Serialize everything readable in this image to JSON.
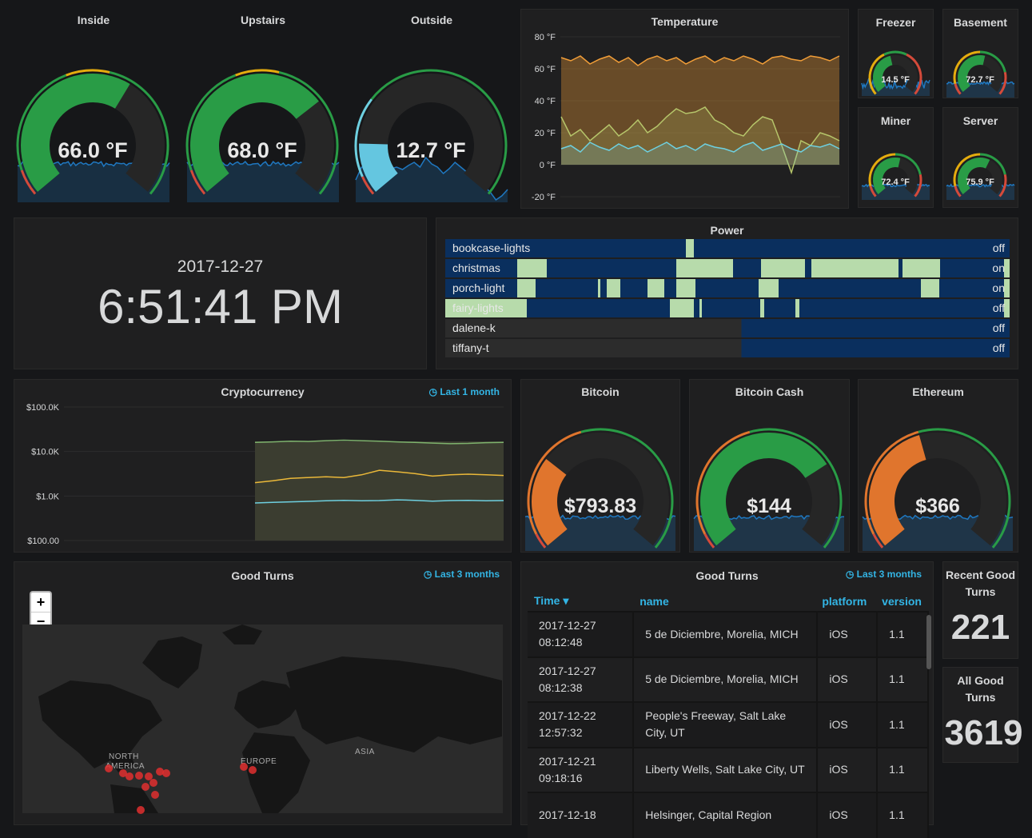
{
  "colors": {
    "background": "#161719",
    "panel": "#1f1f20",
    "ok_green": "#299c46",
    "warn_orange": "#e0752d",
    "threshold_red": "#d44a3a",
    "threshold_yellow": "#e5ac0e",
    "sparkline": "#1f78c1",
    "accent_blue": "#33b5e5",
    "power_on": "#b7dbab",
    "power_off": "#0a2f5e"
  },
  "gauges_main": [
    {
      "title": "Inside",
      "value": "66.0 °F",
      "fraction": 0.62
    },
    {
      "title": "Upstairs",
      "value": "68.0 °F",
      "fraction": 0.7
    },
    {
      "title": "Outside",
      "value": "12.7 °F",
      "fraction": 0.16
    }
  ],
  "temperature": {
    "title": "Temperature",
    "y_ticks": [
      "80 °F",
      "60 °F",
      "40 °F",
      "20 °F",
      "0 °F",
      "-20 °F"
    ],
    "chart_data": {
      "type": "area",
      "ylim": [
        -20,
        80
      ],
      "series": [
        {
          "color": "#f29e38",
          "values": [
            67,
            65,
            68,
            63,
            66,
            68,
            64,
            67,
            62,
            66,
            68,
            65,
            67,
            63,
            66,
            68,
            64,
            67,
            65,
            68,
            66,
            63,
            67,
            68,
            66,
            65,
            68,
            67,
            65,
            68
          ]
        },
        {
          "color": "#b6c56a",
          "values": [
            30,
            18,
            22,
            15,
            20,
            25,
            18,
            22,
            28,
            20,
            24,
            30,
            35,
            32,
            33,
            36,
            28,
            25,
            20,
            18,
            25,
            30,
            28,
            12,
            -5,
            15,
            12,
            20,
            18,
            15
          ]
        },
        {
          "color": "#6ed0e0",
          "values": [
            10,
            12,
            8,
            14,
            11,
            9,
            13,
            10,
            12,
            8,
            11,
            14,
            10,
            12,
            9,
            13,
            11,
            10,
            8,
            12,
            14,
            9,
            11,
            13,
            10,
            8,
            12,
            11,
            13,
            10
          ]
        }
      ]
    }
  },
  "gauges_small": [
    {
      "title": "Freezer",
      "value": "14.5 °F",
      "fraction": 0.45
    },
    {
      "title": "Basement",
      "value": "72.7 °F",
      "fraction": 0.55
    },
    {
      "title": "Miner",
      "value": "72.4 °F",
      "fraction": 0.55
    },
    {
      "title": "Server",
      "value": "75.9 °F",
      "fraction": 0.6
    }
  ],
  "clock": {
    "date": "2017-12-27",
    "time": "6:51:41 PM"
  },
  "power": {
    "title": "Power",
    "rows": [
      {
        "name": "bookcase-lights",
        "state": "off",
        "on_segments": [
          [
            0.427,
            0.44
          ]
        ]
      },
      {
        "name": "christmas",
        "state": "on",
        "on_segments": [
          [
            0.127,
            0.18
          ],
          [
            0.41,
            0.51
          ],
          [
            0.56,
            0.637
          ],
          [
            0.649,
            0.803
          ],
          [
            0.81,
            0.877
          ],
          [
            0.99,
            1.0
          ]
        ]
      },
      {
        "name": "porch-light",
        "state": "on",
        "on_segments": [
          [
            0.127,
            0.16
          ],
          [
            0.27,
            0.275
          ],
          [
            0.286,
            0.31
          ],
          [
            0.358,
            0.388
          ],
          [
            0.41,
            0.444
          ],
          [
            0.555,
            0.59
          ],
          [
            0.843,
            0.876
          ],
          [
            0.99,
            1.0
          ]
        ]
      },
      {
        "name": "fairy-lights",
        "state": "off",
        "on_segments": [
          [
            0.0,
            0.145
          ],
          [
            0.398,
            0.44
          ],
          [
            0.45,
            0.455
          ],
          [
            0.558,
            0.565
          ],
          [
            0.62,
            0.628
          ],
          [
            0.99,
            1.0
          ]
        ]
      },
      {
        "name": "dalene-k",
        "state": "off",
        "on_segments": []
      },
      {
        "name": "tiffany-t",
        "state": "off",
        "on_segments": []
      }
    ]
  },
  "crypto": {
    "title": "Cryptocurrency",
    "time_info": "Last 1 month",
    "y_ticks": [
      "$100.0K",
      "$10.0K",
      "$1.0K",
      "$100.00"
    ],
    "chart_data": {
      "type": "line",
      "log_scale": true,
      "ylim": [
        100,
        100000
      ],
      "series": [
        {
          "color": "#7eb26d",
          "values": [
            16000,
            16500,
            17000,
            16800,
            17500,
            18000,
            17500,
            17000,
            16500,
            16000,
            15500,
            15000,
            15200,
            15800,
            16000
          ]
        },
        {
          "color": "#eab839",
          "values": [
            2000,
            2200,
            2500,
            2600,
            2700,
            2600,
            3000,
            3800,
            3500,
            3200,
            2800,
            3000,
            3100,
            3000,
            2900
          ]
        },
        {
          "color": "#6ed0e0",
          "values": [
            700,
            720,
            740,
            760,
            780,
            800,
            780,
            790,
            820,
            800,
            770,
            790,
            800,
            780,
            790
          ]
        }
      ]
    }
  },
  "coins": [
    {
      "title": "Bitcoin",
      "value": "$793.83",
      "fraction": 0.3,
      "color": "#e0752d"
    },
    {
      "title": "Bitcoin Cash",
      "value": "$144",
      "fraction": 0.72,
      "color": "#299c46"
    },
    {
      "title": "Ethereum",
      "value": "$366",
      "fraction": 0.44,
      "color": "#e0752d"
    }
  ],
  "map": {
    "title": "Good Turns",
    "time_info": "Last 3 months",
    "zoom_in": "+",
    "zoom_out": "−",
    "labels": [
      "NORTH",
      "AMERICA",
      "EUROPE",
      "ASIA"
    ]
  },
  "table": {
    "title": "Good Turns",
    "time_info": "Last 3 months",
    "headers": [
      "Time ▾",
      "name",
      "platform",
      "version"
    ],
    "rows": [
      {
        "time1": "2017-12-27",
        "time2": "08:12:48",
        "name": "5 de Diciembre, Morelia, MICH",
        "platform": "iOS",
        "version": "1.1"
      },
      {
        "time1": "2017-12-27",
        "time2": "08:12:38",
        "name": "5 de Diciembre, Morelia, MICH",
        "platform": "iOS",
        "version": "1.1"
      },
      {
        "time1": "2017-12-22",
        "time2": "12:57:32",
        "name": "People's Freeway, Salt Lake City, UT",
        "platform": "iOS",
        "version": "1.1"
      },
      {
        "time1": "2017-12-21",
        "time2": "09:18:16",
        "name": "Liberty Wells, Salt Lake City, UT",
        "platform": "iOS",
        "version": "1.1"
      },
      {
        "time1": "2017-12-18",
        "time2": "",
        "name": "Helsinger, Capital Region",
        "platform": "iOS",
        "version": "1.1"
      }
    ]
  },
  "recent": {
    "title1": "Recent Good",
    "title2": "Turns",
    "value": "221"
  },
  "all": {
    "title1": "All Good",
    "title2": "Turns",
    "value": "3619"
  }
}
